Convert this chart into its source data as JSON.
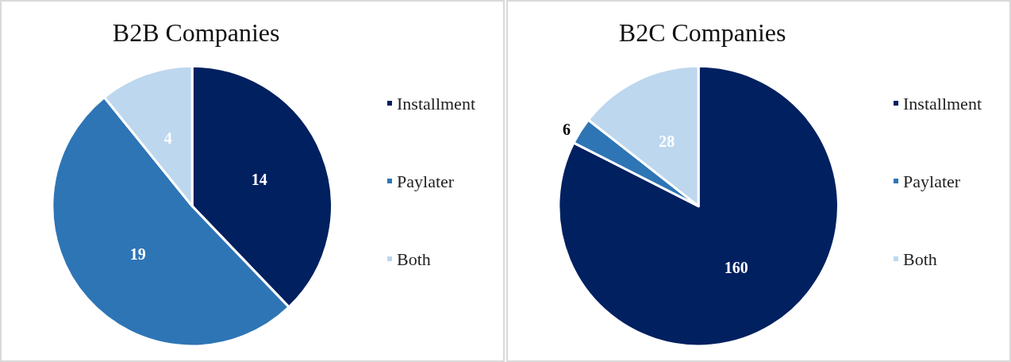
{
  "chart_data": [
    {
      "type": "pie",
      "title": "B2B Companies",
      "categories": [
        "Installment",
        "Paylater",
        "Both"
      ],
      "values": [
        14,
        19,
        4
      ],
      "colors": [
        "#002060",
        "#2e75b6",
        "#bdd7ee"
      ],
      "data_labels": true,
      "legend": "right"
    },
    {
      "type": "pie",
      "title": "B2C Companies",
      "categories": [
        "Installment",
        "Paylater",
        "Both"
      ],
      "values": [
        160,
        6,
        28
      ],
      "colors": [
        "#002060",
        "#2e75b6",
        "#bdd7ee"
      ],
      "data_labels": true,
      "legend": "right"
    }
  ]
}
